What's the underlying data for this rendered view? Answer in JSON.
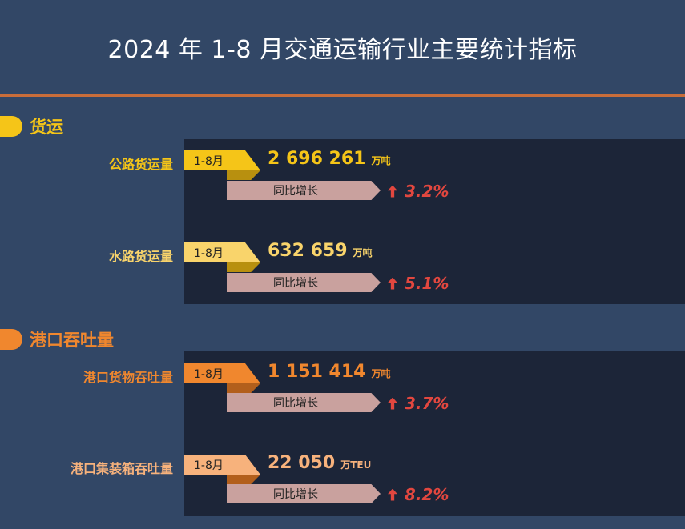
{
  "title": "2024 年 1-8 月交通运输行业主要统计指标",
  "colors": {
    "background": "#324766",
    "panel": "#1c2538",
    "rule": "#c96d3a",
    "freight_accent": "#f5c518",
    "port_accent": "#f0872e",
    "growth_tag": "#c9a19e",
    "growth_text": "#e2473f"
  },
  "sections": {
    "freight": {
      "label": "货运",
      "rows": [
        {
          "label": "公路货运量",
          "period": "1-8月",
          "value": "2 696 261",
          "unit": "万吨",
          "growth_label": "同比增长",
          "growth": "3.2%"
        },
        {
          "label": "水路货运量",
          "period": "1-8月",
          "value": "632 659",
          "unit": "万吨",
          "growth_label": "同比增长",
          "growth": "5.1%"
        }
      ]
    },
    "port": {
      "label": "港口吞吐量",
      "rows": [
        {
          "label": "港口货物吞吐量",
          "period": "1-8月",
          "value": "1 151 414",
          "unit": "万吨",
          "growth_label": "同比增长",
          "growth": "3.7%"
        },
        {
          "label": "港口集装箱吞吐量",
          "period": "1-8月",
          "value": "22 050",
          "unit": "万TEU",
          "growth_label": "同比增长",
          "growth": "8.2%"
        }
      ]
    }
  }
}
